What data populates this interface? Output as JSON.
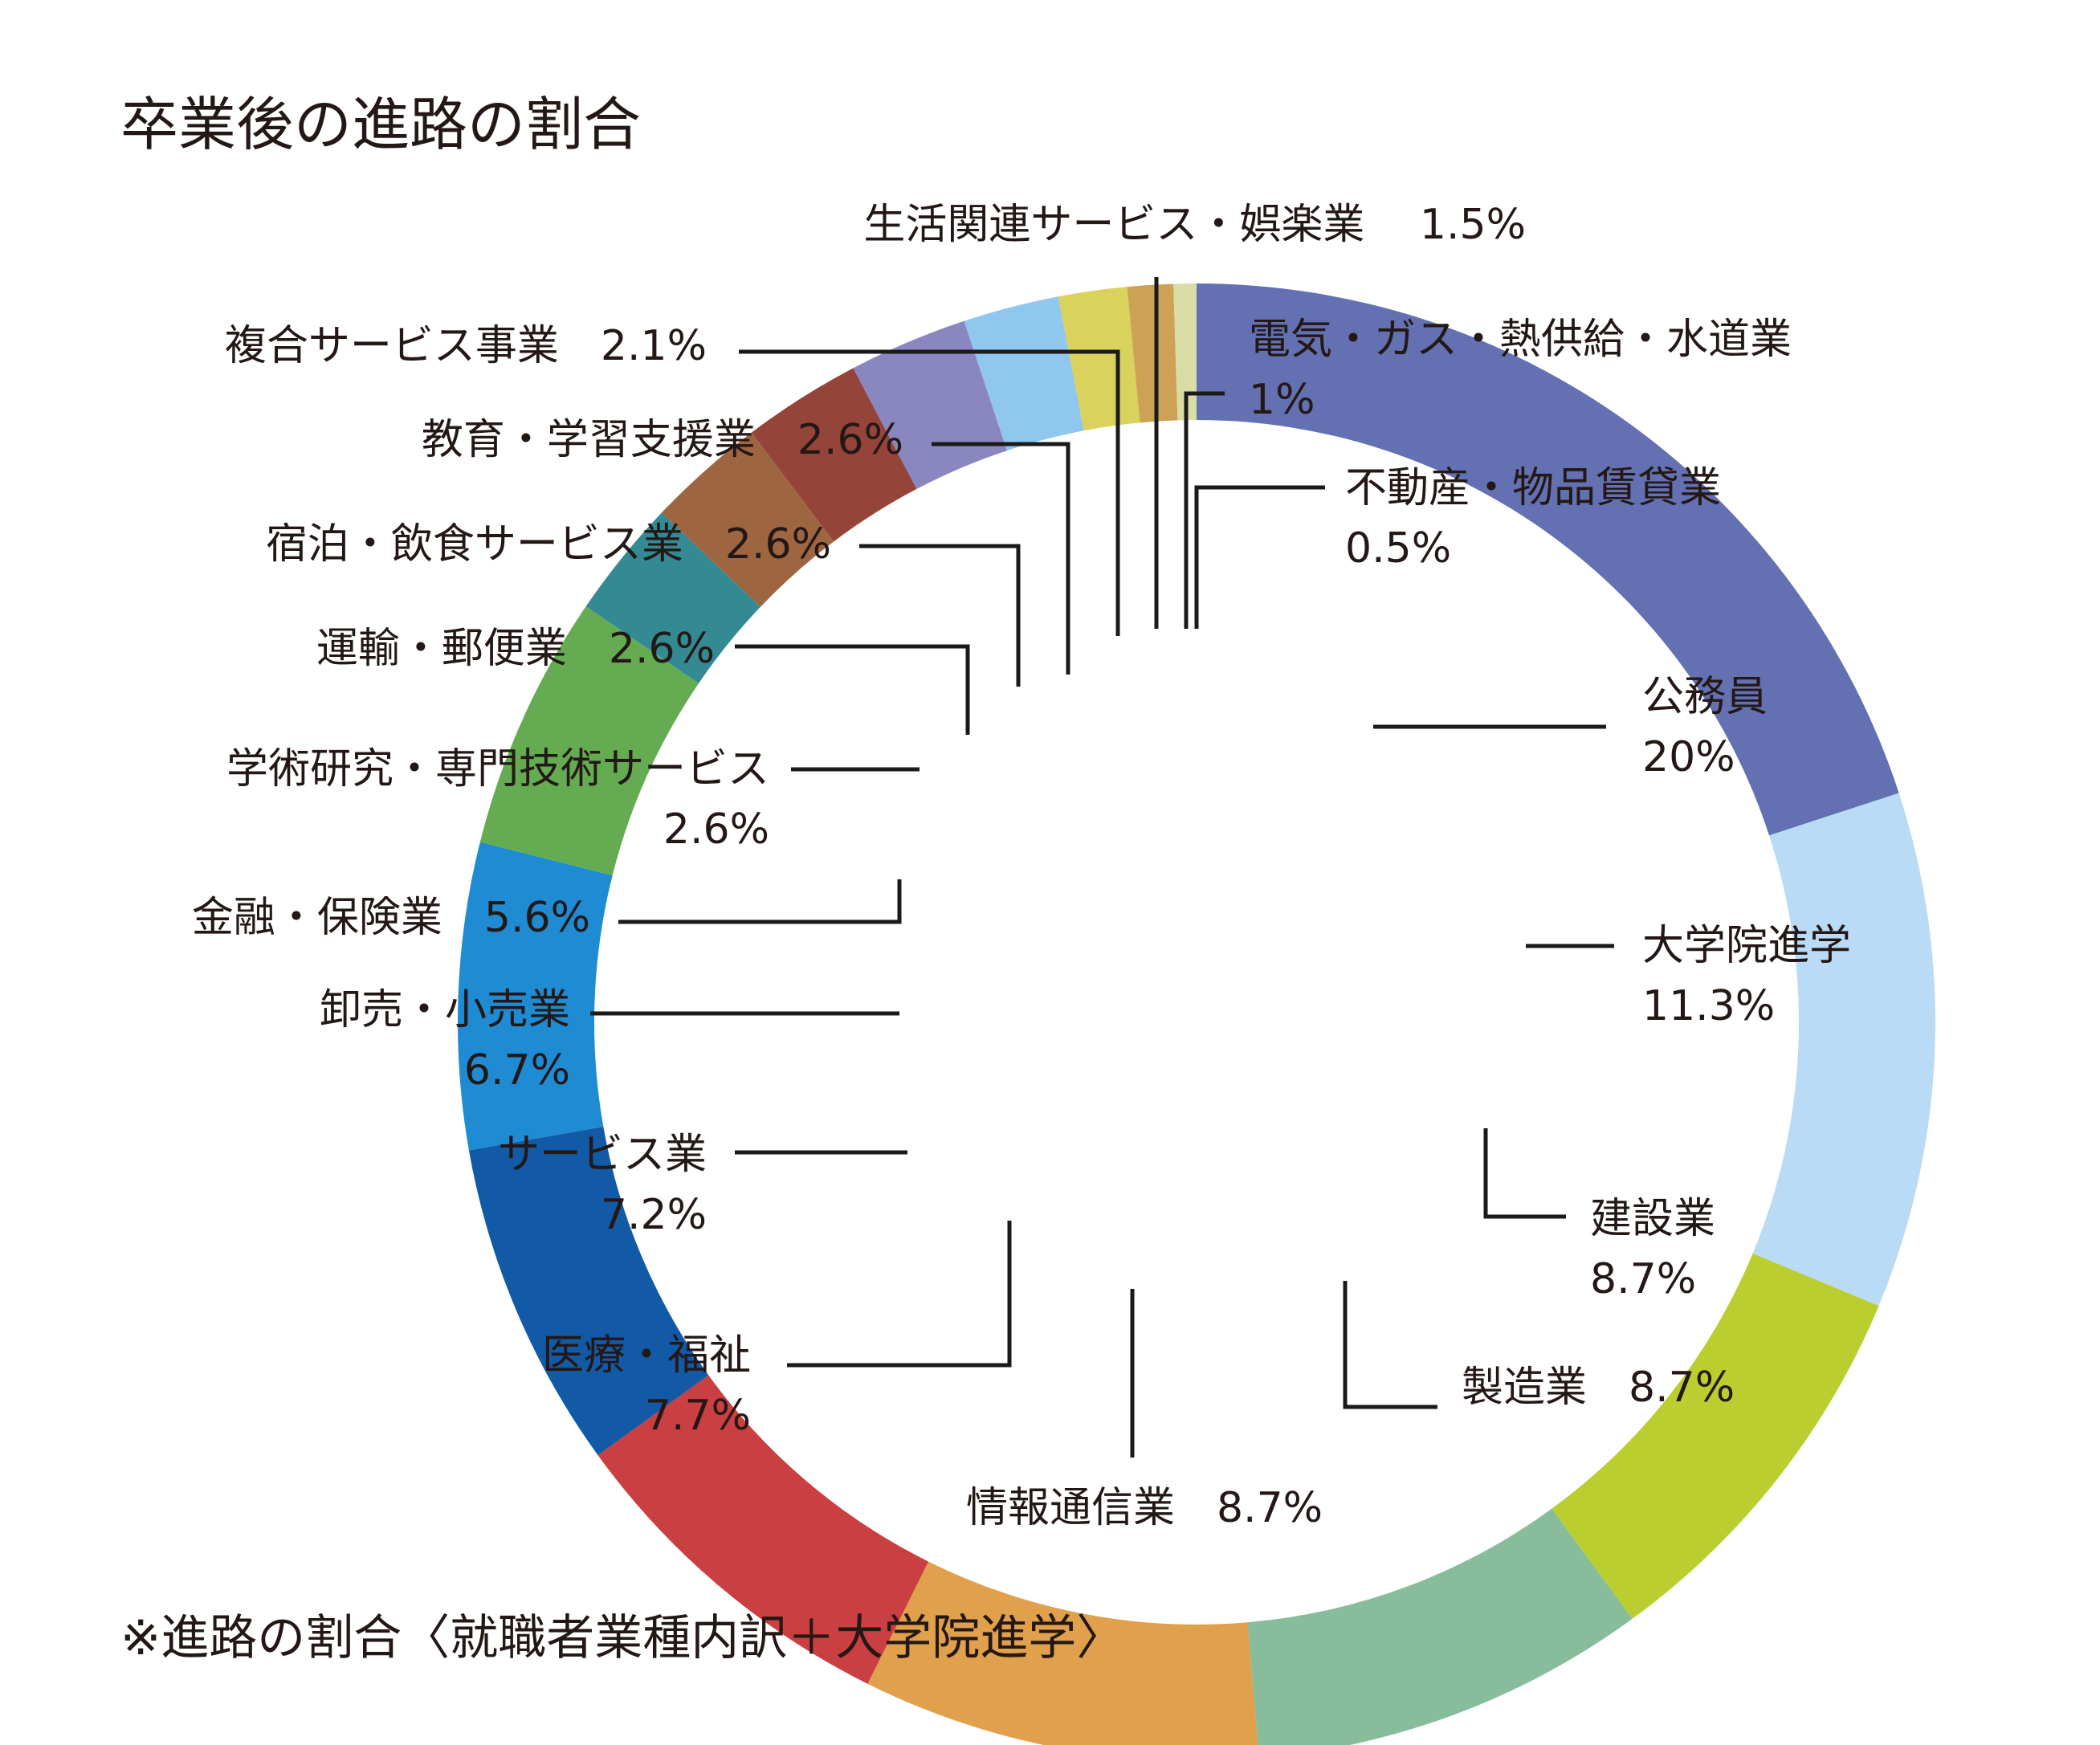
{
  "chart_data": {
    "type": "pie",
    "style": "donut",
    "title": "卒業後の進路の割合",
    "footnote": "※進路の割合〈就職者業種内訳＋大学院進学〉",
    "slices": [
      {
        "name": "公務員",
        "value": 20,
        "label": "20%",
        "color": "#6371b2"
      },
      {
        "name": "大学院進学",
        "value": 11.3,
        "label": "11.3%",
        "color": "#b9dbf5"
      },
      {
        "name": "建設業",
        "value": 8.7,
        "label": "8.7%",
        "color": "#bacf2f"
      },
      {
        "name": "製造業",
        "value": 8.7,
        "label": "8.7%",
        "color": "#87bd9b"
      },
      {
        "name": "情報通信業",
        "value": 8.7,
        "label": "8.7%",
        "color": "#e0a04c"
      },
      {
        "name": "医療・福祉",
        "value": 7.7,
        "label": "7.7%",
        "color": "#ca3f41"
      },
      {
        "name": "サービス業",
        "value": 7.2,
        "label": "7.2%",
        "color": "#1259a6"
      },
      {
        "name": "卸売・小売業",
        "value": 6.7,
        "label": "6.7%",
        "color": "#1e8bd2"
      },
      {
        "name": "金融・保険業",
        "value": 5.6,
        "label": "5.6%",
        "color": "#65ab51"
      },
      {
        "name": "学術研究・専門技術サービス",
        "value": 2.6,
        "label": "2.6%",
        "color": "#348a93"
      },
      {
        "name": "運輸・郵便業",
        "value": 2.6,
        "label": "2.6%",
        "color": "#9e6541"
      },
      {
        "name": "宿泊・飲食サービス業",
        "value": 2.6,
        "label": "2.6%",
        "color": "#944439"
      },
      {
        "name": "教育・学習支援業",
        "value": 2.6,
        "label": "2.6%",
        "color": "#8a86bf"
      },
      {
        "name": "複合サービス事業",
        "value": 2.1,
        "label": "2.1%",
        "color": "#8fc7ef"
      },
      {
        "name": "生活関連サービス・娯楽業",
        "value": 1.5,
        "label": "1.5%",
        "color": "#d9d25c"
      },
      {
        "name": "電気・ガス・熱供給・水道業",
        "value": 1,
        "label": "1%",
        "color": "#cda256"
      },
      {
        "name": "不動産・物品賃貸業",
        "value": 0.5,
        "label": "0.5%",
        "color": "#d9dda5"
      }
    ]
  }
}
